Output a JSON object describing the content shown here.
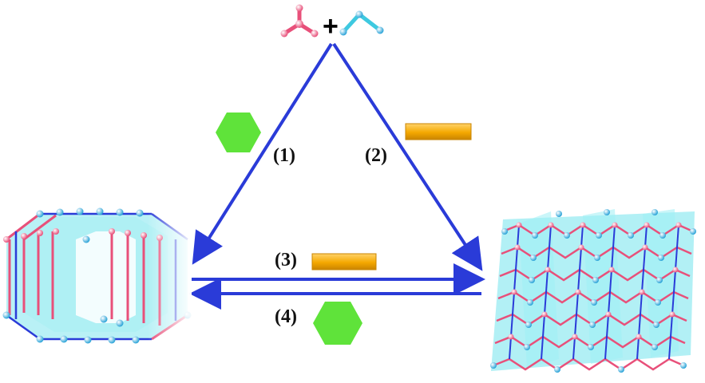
{
  "colors": {
    "arrow": "#2a3bd8",
    "pink": "#e8507a",
    "cyan": "#3ec9e0",
    "cyan_fill": "#7fe6ee",
    "hexagon": "#5fe33a",
    "bar": "#f5a800"
  },
  "plus_sign": "+",
  "routes": [
    {
      "label": "(1)",
      "template": "hexagon"
    },
    {
      "label": "(2)",
      "template": "bar"
    },
    {
      "label": "(3)",
      "template": "bar"
    },
    {
      "label": "(4)",
      "template": "hexagon"
    }
  ],
  "icons": {
    "tripodal_linker": "pink-tripodal-linker-icon",
    "bent_linker": "cyan-bent-linker-icon",
    "left_structure": "hexagonal-tube-framework-icon",
    "right_structure": "wavy-layer-framework-icon"
  }
}
